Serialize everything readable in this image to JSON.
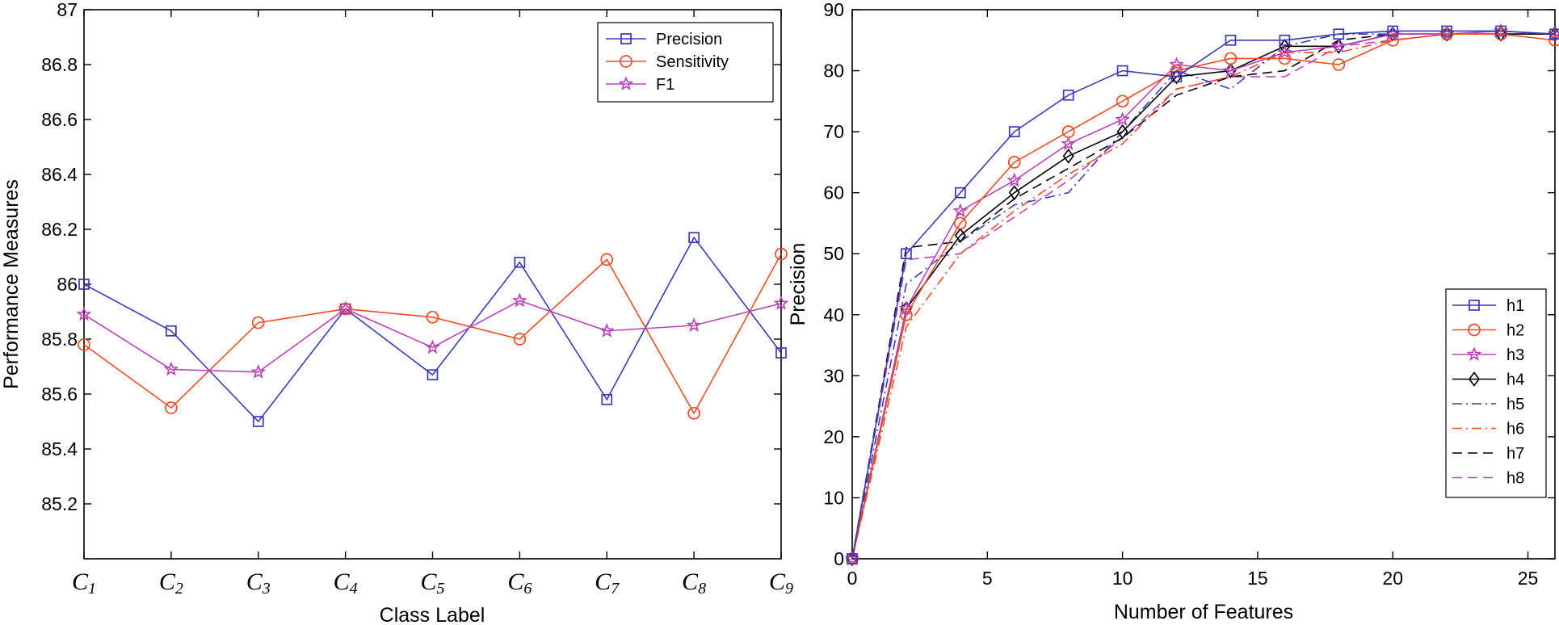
{
  "chart_data": [
    {
      "type": "line",
      "xlabel": "Class Label",
      "ylabel": "Performance Measures",
      "categories": [
        {
          "base": "C",
          "sub": "1"
        },
        {
          "base": "C",
          "sub": "2"
        },
        {
          "base": "C",
          "sub": "3"
        },
        {
          "base": "C",
          "sub": "4"
        },
        {
          "base": "C",
          "sub": "5"
        },
        {
          "base": "C",
          "sub": "6"
        },
        {
          "base": "C",
          "sub": "7"
        },
        {
          "base": "C",
          "sub": "8"
        },
        {
          "base": "C",
          "sub": "9"
        }
      ],
      "ylim": [
        85,
        87
      ],
      "yticks": [
        85.2,
        85.4,
        85.6,
        85.8,
        86,
        86.2,
        86.4,
        86.6,
        86.8,
        87
      ],
      "yticklabels": [
        "85.2",
        "85.4",
        "85.6",
        "85.8",
        "86",
        "86.2",
        "86.4",
        "86.6",
        "86.8",
        "87"
      ],
      "legend_position": "top-right",
      "series": [
        {
          "name": "Precision",
          "color": "#3a3ab4",
          "marker": "square",
          "dash": "solid",
          "values": [
            86.0,
            85.83,
            85.5,
            85.91,
            85.67,
            86.08,
            85.58,
            86.17,
            85.75
          ]
        },
        {
          "name": "Sensitivity",
          "color": "#f04c24",
          "marker": "circle",
          "dash": "solid",
          "values": [
            85.78,
            85.55,
            85.86,
            85.91,
            85.88,
            85.8,
            86.09,
            85.53,
            86.11
          ]
        },
        {
          "name": "F1",
          "color": "#b845b8",
          "marker": "star",
          "dash": "solid",
          "values": [
            85.89,
            85.69,
            85.68,
            85.91,
            85.77,
            85.94,
            85.83,
            85.85,
            85.93
          ]
        }
      ]
    },
    {
      "type": "line",
      "xlabel": "Number of Features",
      "ylabel": "Precision",
      "xlim": [
        0,
        26
      ],
      "ylim": [
        0,
        90
      ],
      "xticks": [
        0,
        5,
        10,
        15,
        20,
        25
      ],
      "xticklabels": [
        "0",
        "5",
        "10",
        "15",
        "20",
        "25"
      ],
      "yticks": [
        0,
        10,
        20,
        30,
        40,
        50,
        60,
        70,
        80,
        90
      ],
      "yticklabels": [
        "0",
        "10",
        "20",
        "30",
        "40",
        "50",
        "60",
        "70",
        "80",
        "90"
      ],
      "x": [
        0,
        2,
        4,
        6,
        8,
        10,
        12,
        14,
        16,
        18,
        20,
        22,
        24,
        26
      ],
      "legend_position": "bottom-right",
      "series": [
        {
          "name": "h1",
          "color": "#3a3ab4",
          "marker": "square",
          "dash": "solid",
          "values": [
            0,
            50,
            60,
            70,
            76,
            80,
            79,
            85,
            85,
            86,
            86.5,
            86.5,
            86.5,
            86
          ]
        },
        {
          "name": "h2",
          "color": "#f04c24",
          "marker": "circle",
          "dash": "solid",
          "values": [
            0,
            40,
            55,
            65,
            70,
            75,
            80,
            82,
            82,
            81,
            85,
            86,
            86,
            85
          ]
        },
        {
          "name": "h3",
          "color": "#b845b8",
          "marker": "star",
          "dash": "solid",
          "values": [
            0,
            41,
            57,
            62,
            68,
            72,
            81,
            80,
            83,
            84,
            86,
            86,
            86.5,
            86
          ]
        },
        {
          "name": "h4",
          "color": "#000000",
          "marker": "diamond",
          "dash": "solid",
          "values": [
            0,
            41,
            53,
            60,
            66,
            70,
            79,
            80,
            84,
            84,
            86,
            86,
            86,
            86
          ]
        },
        {
          "name": "h5",
          "color": "#3a3ab4",
          "marker": "none",
          "dash": "dashdot",
          "values": [
            0,
            45,
            52,
            58,
            60,
            70,
            80,
            77,
            84,
            86,
            86,
            86,
            86,
            86
          ]
        },
        {
          "name": "h6",
          "color": "#f04c24",
          "marker": "none",
          "dash": "dashdot",
          "values": [
            0,
            38,
            50,
            57,
            63,
            68,
            77,
            79,
            83,
            83,
            85,
            86,
            86,
            86
          ]
        },
        {
          "name": "h7",
          "color": "#000000",
          "marker": "none",
          "dash": "dashed",
          "values": [
            0,
            51,
            52,
            59,
            64,
            69,
            76,
            79,
            80,
            85,
            86,
            86,
            86,
            86
          ]
        },
        {
          "name": "h8",
          "color": "#b845b8",
          "marker": "none",
          "dash": "dashed",
          "values": [
            0,
            49,
            50,
            56,
            62,
            69,
            77,
            79,
            79,
            84,
            85,
            86,
            86,
            86
          ]
        }
      ]
    }
  ]
}
